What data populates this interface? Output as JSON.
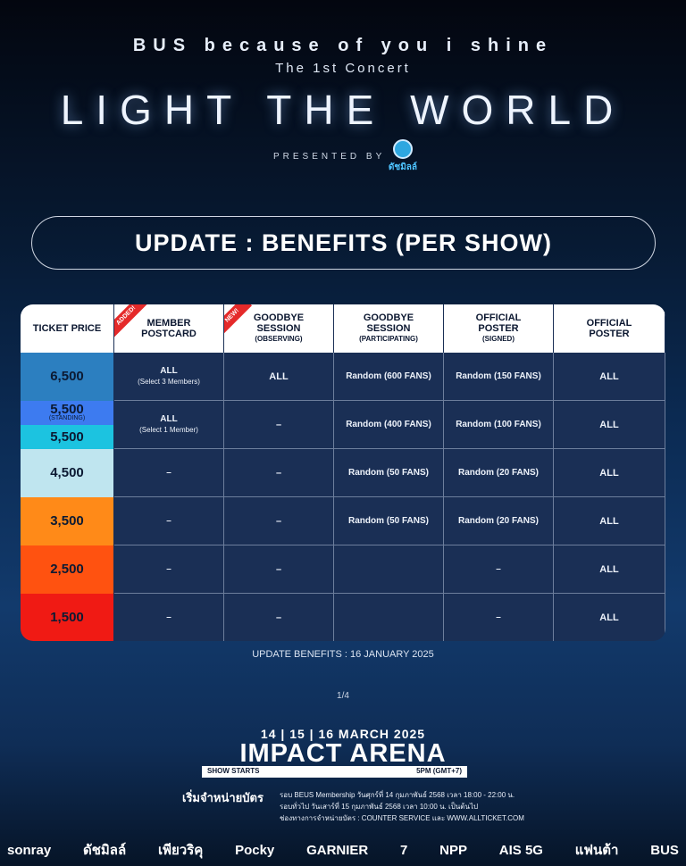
{
  "header": {
    "pre_title": "BUS because of you i shine",
    "sub_title": "The 1st Concert",
    "main_title": "LIGHT THE WORLD",
    "presented_by": "PRESENTED BY",
    "presenter_logo_text": "ดัชมิลล์"
  },
  "update_title": "UPDATE : BENEFITS (PER SHOW)",
  "table": {
    "headers": [
      {
        "label": "TICKET PRICE",
        "sub": "",
        "ribbon": ""
      },
      {
        "label": "MEMBER POSTCARD",
        "sub": "",
        "ribbon": "ADDED!"
      },
      {
        "label": "GOODBYE SESSION",
        "sub": "(OBSERVING)",
        "ribbon": "NEW!"
      },
      {
        "label": "GOODBYE SESSION",
        "sub": "(PARTICIPATING)",
        "ribbon": ""
      },
      {
        "label": "OFFICIAL POSTER",
        "sub": "(SIGNED)",
        "ribbon": ""
      },
      {
        "label": "OFFICIAL POSTER",
        "sub": "",
        "ribbon": ""
      }
    ],
    "rows": [
      {
        "prices": [
          {
            "price": "6,500",
            "note": "",
            "color": "#2c7fc0"
          }
        ],
        "postcard": "ALL",
        "postcard_note": "(Select 3 Members)",
        "observing": "ALL",
        "participating": "Random (600 FANS)",
        "signed": "Random (150 FANS)",
        "poster": "ALL"
      },
      {
        "prices": [
          {
            "price": "5,500",
            "note": "(STANDING)",
            "color": "#3d7bf0"
          },
          {
            "price": "5,500",
            "note": "",
            "color": "#1cc3e0"
          }
        ],
        "postcard": "ALL",
        "postcard_note": "(Select 1 Member)",
        "observing": "–",
        "participating": "Random (400 FANS)",
        "signed": "Random (100 FANS)",
        "poster": "ALL"
      },
      {
        "prices": [
          {
            "price": "4,500",
            "note": "",
            "color": "#bfe5ef"
          }
        ],
        "postcard": "–",
        "postcard_note": "",
        "observing": "–",
        "participating": "Random (50 FANS)",
        "signed": "Random (20 FANS)",
        "poster": "ALL"
      },
      {
        "prices": [
          {
            "price": "3,500",
            "note": "",
            "color": "#ff8a18"
          }
        ],
        "postcard": "–",
        "postcard_note": "",
        "observing": "–",
        "participating": "Random (50 FANS)",
        "signed": "Random (20 FANS)",
        "poster": "ALL"
      },
      {
        "prices": [
          {
            "price": "2,500",
            "note": "",
            "color": "#ff5210"
          }
        ],
        "postcard": "–",
        "postcard_note": "",
        "observing": "–",
        "participating": "",
        "signed": "–",
        "poster": "ALL"
      },
      {
        "prices": [
          {
            "price": "1,500",
            "note": "",
            "color": "#f01a14"
          }
        ],
        "postcard": "–",
        "postcard_note": "",
        "observing": "–",
        "participating": "",
        "signed": "–",
        "poster": "ALL"
      }
    ]
  },
  "footnote": "UPDATE BENEFITS : 16 JANUARY 2025",
  "pager": "1/4",
  "event": {
    "dates": "14 | 15 | 16 MARCH 2025",
    "venue": "IMPACT ARENA",
    "show_starts_label": "SHOW STARTS",
    "show_time": "5PM (GMT+7)"
  },
  "sale": {
    "title": "เริ่มจำหน่ายบัตร",
    "line1": "รอบ BEUS Membership วันศุกร์ที่ 14 กุมภาพันธ์ 2568 เวลา 18:00 - 22:00 น.",
    "line2": "รอบทั่วไป วันเสาร์ที่ 15 กุมภาพันธ์ 2568 เวลา 10:00 น. เป็นต้นไป",
    "line3": "ช่องทางการจำหน่ายบัตร : COUNTER SERVICE และ WWW.ALLTICKET.COM"
  },
  "sponsors": [
    "sonray",
    "ดัชมิลล์",
    "เพียวริคุ",
    "Pocky",
    "GARNIER",
    "7",
    "NPP",
    "AIS 5G",
    "แฟนต้า",
    "BUS"
  ]
}
